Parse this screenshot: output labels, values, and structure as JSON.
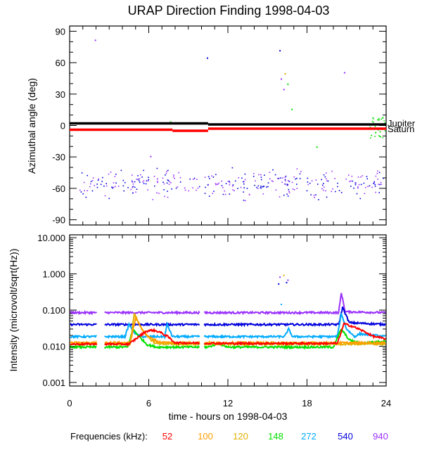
{
  "chart_data": [
    {
      "type": "scatter",
      "title": "URAP Direction Finding  1998-04-03",
      "ylabel": "Azimuthal angle (deg)",
      "xlabel": "",
      "xlim": [
        0,
        24
      ],
      "ylim": [
        -95,
        95
      ],
      "xticks": [
        0,
        6,
        12,
        18,
        24
      ],
      "yticks": [
        90,
        60,
        30,
        0,
        -30,
        -60,
        -90
      ],
      "ytick_labels": [
        "90",
        "60",
        "30",
        "0",
        "-30",
        "-60",
        "-90"
      ],
      "reference_lines": [
        {
          "name": "Jupiter",
          "color": "#000000",
          "segments": [
            {
              "x": [
                0,
                10.5
              ],
              "y": 2
            },
            {
              "x": [
                10.5,
                24
              ],
              "y": 1
            }
          ]
        },
        {
          "name": "Saturn",
          "color": "#ff0000",
          "segments": [
            {
              "x": [
                0,
                7.8
              ],
              "y": -4
            },
            {
              "x": [
                7.8,
                10.5
              ],
              "y": -5
            },
            {
              "x": [
                10.5,
                24
              ],
              "y": -3
            }
          ]
        }
      ],
      "isolated_points": [
        {
          "x": 1.9,
          "y": 82,
          "color": "#9b30ff"
        },
        {
          "x": 10.4,
          "y": 65,
          "color": "#0000dd"
        },
        {
          "x": 15.9,
          "y": 72,
          "color": "#0000dd"
        },
        {
          "x": 16.3,
          "y": 50,
          "color": "#e0b000"
        },
        {
          "x": 16.0,
          "y": 45,
          "color": "#9b30ff"
        },
        {
          "x": 16.5,
          "y": 40,
          "color": "#00e000"
        },
        {
          "x": 16.2,
          "y": 35,
          "color": "#9b30ff"
        },
        {
          "x": 16.8,
          "y": 16,
          "color": "#00e000"
        },
        {
          "x": 20.8,
          "y": 51,
          "color": "#9b30ff"
        },
        {
          "x": 7.6,
          "y": 4,
          "color": "#00e000"
        },
        {
          "x": 6.1,
          "y": -29,
          "color": "#9b30ff"
        },
        {
          "x": 18.7,
          "y": -20,
          "color": "#00e000"
        },
        {
          "x": 23.7,
          "y": 8,
          "color": "#00e000"
        },
        {
          "x": 23.4,
          "y": 6,
          "color": "#00e000"
        }
      ],
      "scatter_cloud": {
        "x_range": [
          0.7,
          24
        ],
        "y_center": -55,
        "y_spread": 9,
        "colors": [
          "#0000dd",
          "#9b30ff"
        ]
      },
      "annotations": [
        "Jupiter",
        "Saturn"
      ]
    },
    {
      "type": "line",
      "scale": "log",
      "ylabel": "Intensity (microvolt/sqrt(Hz))",
      "xlabel": "time - hours on 1998-04-03",
      "xlim": [
        0,
        24
      ],
      "ylim": [
        0.0008,
        12
      ],
      "xticks": [
        0,
        6,
        12,
        18,
        24
      ],
      "xtick_labels": [
        "0",
        "6",
        "12",
        "18",
        "24"
      ],
      "yticks": [
        10,
        1,
        0.1,
        0.01,
        0.001
      ],
      "ytick_labels": [
        "10.000",
        "1.000",
        "0.100",
        "0.010",
        "0.001"
      ],
      "data_gaps": [
        [
          2.1,
          2.6
        ],
        [
          9.9,
          10.2
        ]
      ],
      "series": [
        {
          "name": "52",
          "color": "#ff0000",
          "base": 0.0115,
          "x": [
            0,
            4.5,
            5.2,
            5.8,
            6.3,
            6.8,
            7.4,
            8.0,
            12,
            16,
            20.3,
            20.8,
            21.5,
            22.3,
            23.0,
            24
          ],
          "values": [
            0.0115,
            0.0115,
            0.018,
            0.026,
            0.028,
            0.025,
            0.019,
            0.0125,
            0.012,
            0.012,
            0.012,
            0.042,
            0.035,
            0.026,
            0.019,
            0.016
          ]
        },
        {
          "name": "100",
          "color": "#ff9f00",
          "base": 0.0125,
          "x": [
            0,
            4.6,
            5.0,
            5.5,
            6.0,
            6.8,
            8,
            24
          ],
          "values": [
            0.0125,
            0.0125,
            0.06,
            0.03,
            0.018,
            0.013,
            0.0125,
            0.0125
          ]
        },
        {
          "name": "120",
          "color": "#e0b000",
          "base": 0.0115,
          "x": [
            0,
            4.6,
            4.9,
            5.3,
            5.8,
            6.5,
            8,
            24
          ],
          "values": [
            0.0115,
            0.0115,
            0.08,
            0.04,
            0.02,
            0.012,
            0.0115,
            0.0115
          ]
        },
        {
          "name": "148",
          "color": "#00e000",
          "base": 0.0095,
          "x": [
            0,
            4.4,
            4.8,
            5.3,
            5.9,
            6.6,
            9,
            10.5,
            11.3,
            12,
            20.0,
            20.6,
            21.2,
            22,
            23,
            24
          ],
          "values": [
            0.0095,
            0.0095,
            0.03,
            0.018,
            0.011,
            0.0095,
            0.0095,
            0.0095,
            0.012,
            0.0095,
            0.0095,
            0.03,
            0.015,
            0.012,
            0.013,
            0.014
          ]
        },
        {
          "name": "272",
          "color": "#00aaff",
          "base": 0.0185,
          "x": [
            0,
            4.2,
            4.5,
            5.0,
            5.5,
            7.2,
            7.4,
            7.8,
            16.3,
            16.6,
            16.9,
            20.3,
            20.6,
            21.0,
            21.6,
            22.0,
            24
          ],
          "values": [
            0.0185,
            0.0185,
            0.04,
            0.022,
            0.0185,
            0.0185,
            0.04,
            0.0185,
            0.0185,
            0.03,
            0.0185,
            0.0185,
            0.08,
            0.03,
            0.0185,
            0.022,
            0.0185
          ]
        },
        {
          "name": "540",
          "color": "#0000dd",
          "base": 0.04,
          "x": [
            0,
            20.4,
            20.7,
            21.2,
            24
          ],
          "values": [
            0.04,
            0.04,
            0.12,
            0.045,
            0.04
          ]
        },
        {
          "name": "940",
          "color": "#9b30ff",
          "base": 0.085,
          "x": [
            0,
            20.4,
            20.6,
            20.9,
            24
          ],
          "values": [
            0.085,
            0.085,
            0.3,
            0.09,
            0.085
          ]
        }
      ],
      "isolated_points": [
        {
          "x": 15.9,
          "y": 0.85,
          "color": "#9b30ff"
        },
        {
          "x": 16.2,
          "y": 0.95,
          "color": "#e0b000"
        },
        {
          "x": 16.5,
          "y": 0.7,
          "color": "#9b30ff"
        },
        {
          "x": 15.8,
          "y": 0.55,
          "color": "#0000dd"
        },
        {
          "x": 16.4,
          "y": 0.6,
          "color": "#0000dd"
        },
        {
          "x": 16.0,
          "y": 0.15,
          "color": "#00aaff"
        }
      ]
    }
  ],
  "legend": {
    "label": "Frequencies (kHz):",
    "items": [
      {
        "text": "52",
        "color": "#ff0000"
      },
      {
        "text": "100",
        "color": "#ff9f00"
      },
      {
        "text": "120",
        "color": "#e0b000"
      },
      {
        "text": "148",
        "color": "#00e000"
      },
      {
        "text": "272",
        "color": "#00aaff"
      },
      {
        "text": "540",
        "color": "#0000dd"
      },
      {
        "text": "940",
        "color": "#9b30ff"
      }
    ]
  }
}
